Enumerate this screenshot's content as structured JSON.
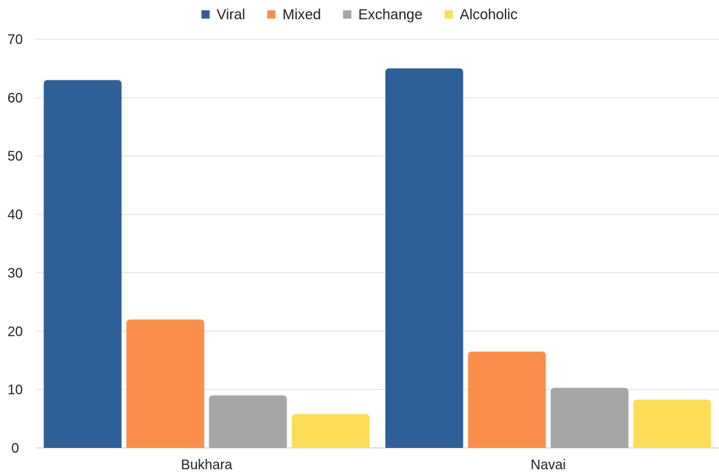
{
  "chart_data": {
    "type": "bar",
    "title": "",
    "xlabel": "",
    "ylabel": "",
    "categories": [
      "Bukhara",
      "Navai"
    ],
    "series": [
      {
        "name": "Viral",
        "values": [
          63,
          65
        ],
        "color": "#2f5f97"
      },
      {
        "name": "Mixed",
        "values": [
          22,
          16.5
        ],
        "color": "#fb8e4a"
      },
      {
        "name": "Exchange",
        "values": [
          9,
          10.3
        ],
        "color": "#a6a6a6"
      },
      {
        "name": "Alcoholic",
        "values": [
          5.8,
          8.3
        ],
        "color": "#fddd58"
      }
    ],
    "ylim": [
      0,
      70
    ],
    "yticks": [
      0,
      10,
      20,
      30,
      40,
      50,
      60,
      70
    ],
    "grid": true,
    "legend_position": "top"
  }
}
